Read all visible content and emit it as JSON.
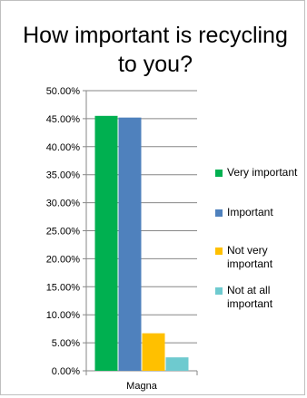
{
  "chart_data": {
    "type": "bar",
    "title": "How important is recycling to you?",
    "categories": [
      "Magna"
    ],
    "series": [
      {
        "name": "Very important",
        "color": "#00b050",
        "values": [
          45.5
        ]
      },
      {
        "name": "Important",
        "color": "#4f81bd",
        "values": [
          45.2
        ]
      },
      {
        "name": "Not very important",
        "color": "#ffc000",
        "values": [
          6.7
        ]
      },
      {
        "name": "Not at all important",
        "color": "#6ecacf",
        "values": [
          2.4
        ]
      }
    ],
    "yticks": [
      "0.00%",
      "5.00%",
      "10.00%",
      "15.00%",
      "20.00%",
      "25.00%",
      "30.00%",
      "35.00%",
      "40.00%",
      "45.00%",
      "50.00%"
    ],
    "ylim": [
      0,
      50
    ],
    "grid": true,
    "legend": "right"
  }
}
